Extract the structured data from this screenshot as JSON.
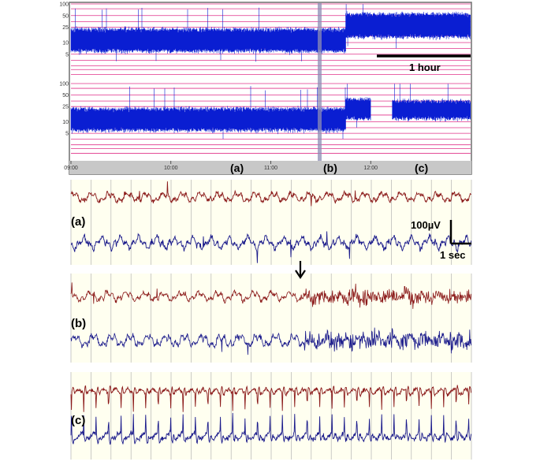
{
  "colors": {
    "trend_trace": "#0a1ed2",
    "trend_bg": "#ffffff",
    "trend_grid": "#e0328a",
    "trend_frame": "#6e6e6e",
    "time_axis_bg": "#c8c8c8",
    "eeg_bg": "#fffff0",
    "eeg_grid": "#b4b4b4",
    "eeg_channel_1": "#8b1a1a",
    "eeg_channel_2": "#1a1a8b",
    "marker": "#8c8cb4"
  },
  "icons": {
    "event_marker": "down-arrow-icon"
  },
  "labels": {
    "scale_hour": "1 hour",
    "scale_voltage": "100µV",
    "scale_time": "1 sec",
    "axis_segment_a": "(a)",
    "axis_segment_b": "(b)",
    "axis_segment_c": "(c)",
    "panel_a": "(a)",
    "panel_b": "(b)",
    "panel_c": "(c)"
  },
  "chart_data": [
    {
      "type": "area",
      "yscale": "log",
      "ylim": [
        1,
        100
      ],
      "yticks": [
        "100",
        "50",
        "25",
        "10",
        "5"
      ],
      "xticks": [
        "09:00",
        "10:00",
        "11:00",
        "12:00"
      ],
      "series": [
        {
          "segment_levels": [
            {
              "from": "09:00",
              "to": "11:45",
              "low": 6,
              "high": 22
            },
            {
              "from": "11:45",
              "to": "13:00",
              "low": 14,
              "high": 55
            }
          ]
        },
        {
          "segment_levels": [
            {
              "from": "09:00",
              "to": "11:45",
              "low": 6,
              "high": 22
            },
            {
              "from": "11:45",
              "to": "12:00",
              "low": 12,
              "high": 40
            },
            {
              "from": "12:00",
              "to": "12:13",
              "gap": true
            },
            {
              "from": "12:13",
              "to": "13:00",
              "low": 12,
              "high": 35
            }
          ]
        }
      ]
    },
    {
      "type": "line",
      "title": "(a)",
      "series": [
        {
          "pattern": "background"
        },
        {
          "pattern": "background"
        }
      ]
    },
    {
      "type": "line",
      "title": "(b)",
      "series": [
        {
          "pattern": "background then fast activity"
        },
        {
          "pattern": "background then fast activity"
        }
      ]
    },
    {
      "type": "line",
      "title": "(c)",
      "series": [
        {
          "pattern": "rhythmic spikes"
        },
        {
          "pattern": "rhythmic spikes"
        }
      ]
    }
  ]
}
